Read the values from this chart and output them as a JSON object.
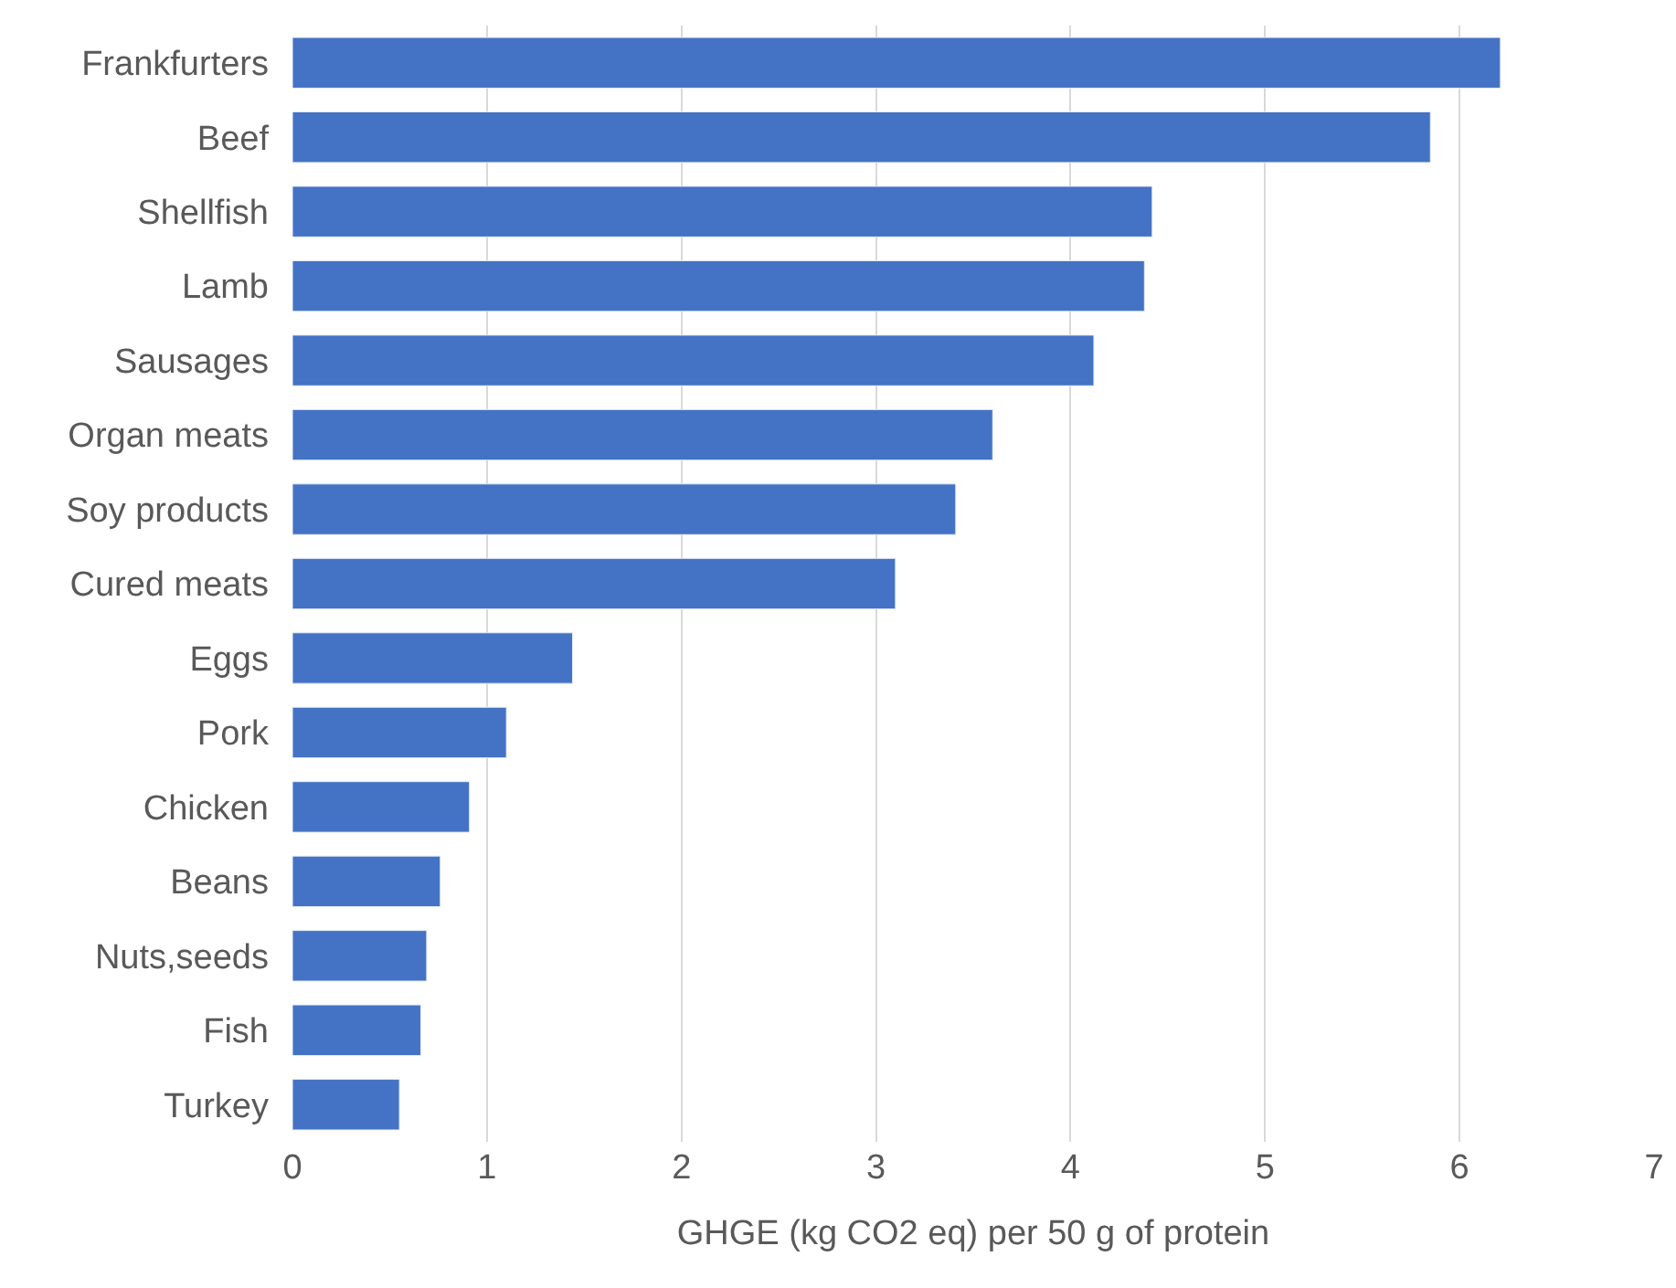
{
  "chart_data": {
    "type": "bar",
    "orientation": "horizontal",
    "xlabel": "GHGE (kg CO2 eq) per 50 g of protein",
    "categories": [
      "Frankfurters",
      "Beef",
      "Shellfish",
      "Lamb",
      "Sausages",
      "Organ meats",
      "Soy products",
      "Cured meats",
      "Eggs",
      "Pork",
      "Chicken",
      "Beans",
      "Nuts,seeds",
      "Fish",
      "Turkey"
    ],
    "values": [
      6.21,
      5.85,
      4.42,
      4.38,
      4.12,
      3.6,
      3.41,
      3.1,
      1.44,
      1.1,
      0.91,
      0.76,
      0.69,
      0.66,
      0.55
    ],
    "color": "#4472c4",
    "xlim": [
      0,
      7
    ],
    "xticks": [
      0,
      1,
      2,
      3,
      4,
      5,
      6,
      7
    ],
    "grid": "x"
  }
}
